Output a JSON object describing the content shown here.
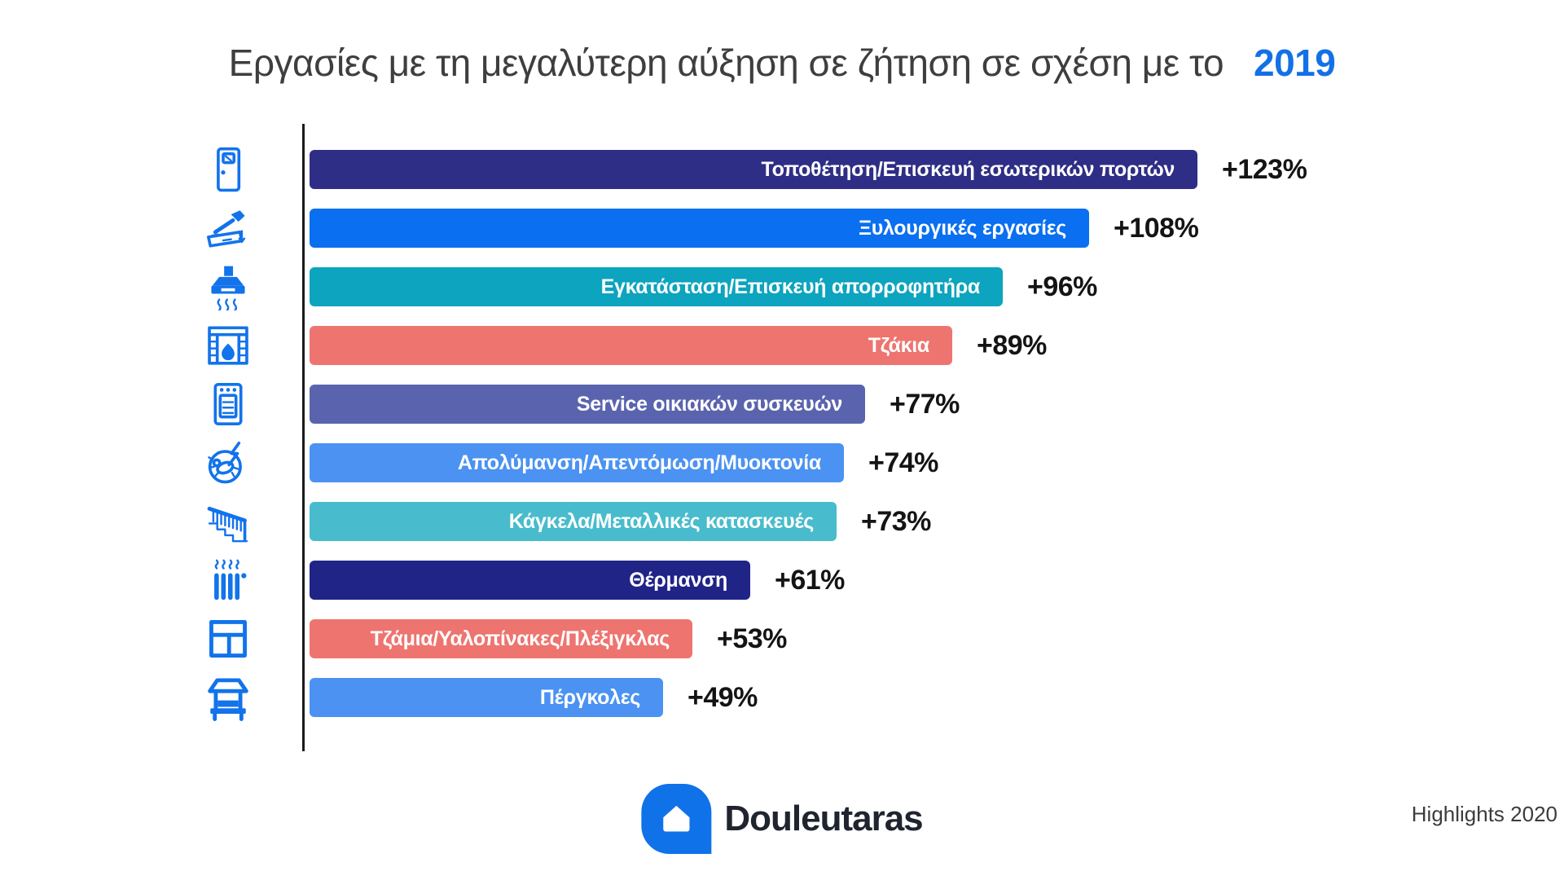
{
  "title": {
    "text": "Εργασίες με τη μεγαλύτερη αύξηση σε ζήτηση σε σχέση με το",
    "highlight": "2019"
  },
  "chart_data": {
    "type": "bar",
    "orientation": "horizontal",
    "value_unit": "percent increase vs 2019",
    "xlim": [
      0,
      130
    ],
    "grid": false,
    "items": [
      {
        "label": "Τοποθέτηση/Επισκευή εσωτερικών πορτών",
        "value": 123,
        "display": "+123%",
        "color": "#2E2E86",
        "icon": "door-icon"
      },
      {
        "label": "Ξυλουργικές εργασίες",
        "value": 108,
        "display": "+108%",
        "color": "#0A6FF0",
        "icon": "carpentry-icon"
      },
      {
        "label": "Εγκατάσταση/Επισκευή απορροφητήρα",
        "value": 96,
        "display": "+96%",
        "color": "#0CA4BE",
        "icon": "range-hood-icon"
      },
      {
        "label": "Τζάκια",
        "value": 89,
        "display": "+89%",
        "color": "#EE7470",
        "icon": "fireplace-icon"
      },
      {
        "label": "Service οικιακών συσκευών",
        "value": 77,
        "display": "+77%",
        "color": "#5A64AE",
        "icon": "oven-icon"
      },
      {
        "label": "Απολύμανση/Απεντόμωση/Μυοκτονία",
        "value": 74,
        "display": "+74%",
        "color": "#4B92F2",
        "icon": "pest-control-icon"
      },
      {
        "label": "Κάγκελα/Μεταλλικές κατασκευές",
        "value": 73,
        "display": "+73%",
        "color": "#48BCCC",
        "icon": "railing-icon"
      },
      {
        "label": "Θέρμανση",
        "value": 61,
        "display": "+61%",
        "color": "#202487",
        "icon": "radiator-icon"
      },
      {
        "label": "Τζάμια/Υαλοπίνακες/Πλέξιγκλας",
        "value": 53,
        "display": "+53%",
        "color": "#EE7470",
        "icon": "window-icon"
      },
      {
        "label": "Πέργκολες",
        "value": 49,
        "display": "+49%",
        "color": "#4B92F2",
        "icon": "pergola-icon"
      }
    ]
  },
  "footer": {
    "logo_text": "Douleutaras",
    "note": "Highlights 2020"
  },
  "colors": {
    "icon_blue": "#1273EB",
    "title_highlight": "#1470E6",
    "axis": "#1B1B1B",
    "logo_blue": "#0F72E8",
    "background": "#FFFFFF"
  }
}
